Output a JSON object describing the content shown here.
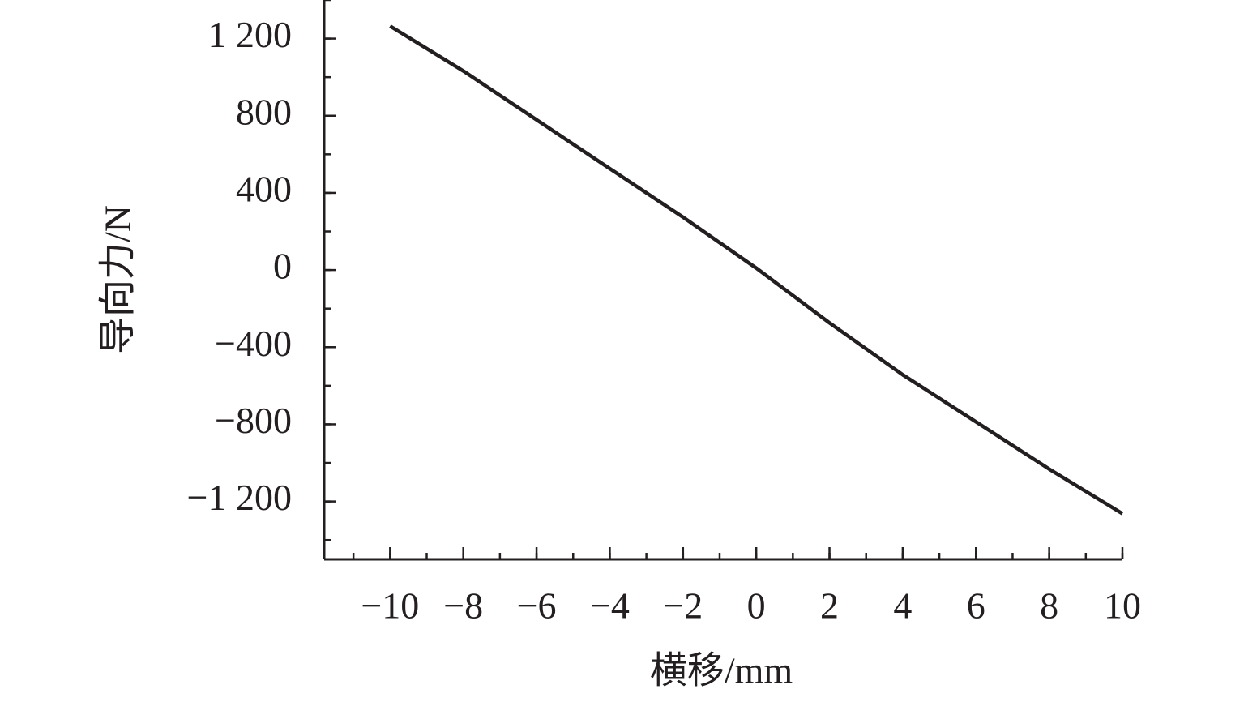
{
  "chart_data": {
    "type": "line",
    "x_label": "横移/mm",
    "y_label": "导向力/N",
    "x": [
      -10,
      -8,
      -6,
      -4,
      -2,
      0,
      2,
      4,
      6,
      8,
      10
    ],
    "series": [
      {
        "color": "#231f20",
        "values": [
          1265,
          1032,
          779,
          526,
          274,
          10,
          -274,
          -543,
          -787,
          -1032,
          -1263
        ]
      }
    ],
    "xlim": [
      -11.8,
      10
    ],
    "xticks": [
      {
        "value": -10,
        "label": "−10"
      },
      {
        "value": -8,
        "label": "−8"
      },
      {
        "value": -6,
        "label": "−6"
      },
      {
        "value": -4,
        "label": "−4"
      },
      {
        "value": -2,
        "label": "−2"
      },
      0,
      2,
      4,
      6,
      8,
      10
    ],
    "ylim": [
      -1500,
      1400
    ],
    "yticks": [
      {
        "value": -1200,
        "label": "−1 200"
      },
      {
        "value": -800,
        "label": "−800"
      },
      {
        "value": -400,
        "label": "−400"
      },
      0,
      400,
      800,
      {
        "value": 1200,
        "label": "1 200"
      }
    ],
    "grid": false
  }
}
